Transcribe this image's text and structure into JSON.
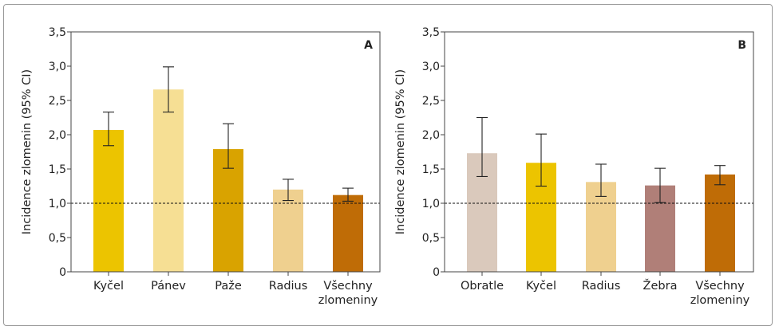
{
  "chart_data": [
    {
      "type": "bar",
      "panel_label": "A",
      "ylabel": "Incidence zlomenin (95% CI)",
      "ylim": [
        0,
        3.5
      ],
      "yticks": [
        "0",
        "0,5",
        "1,0",
        "1,5",
        "2,0",
        "2,5",
        "3,0",
        "3,5"
      ],
      "reference_line": 1.0,
      "categories": [
        [
          "Kyčel"
        ],
        [
          "Pánev"
        ],
        [
          "Paže"
        ],
        [
          "Radius"
        ],
        [
          "Všechny",
          "zlomeniny"
        ]
      ],
      "values": [
        2.07,
        2.66,
        1.79,
        1.2,
        1.12
      ],
      "ci_low": [
        1.84,
        2.33,
        1.51,
        1.04,
        1.03
      ],
      "ci_high": [
        2.33,
        2.99,
        2.16,
        1.35,
        1.22
      ],
      "colors": [
        "#ecc400",
        "#f6df94",
        "#d9a300",
        "#efd08f",
        "#bf6c06"
      ]
    },
    {
      "type": "bar",
      "panel_label": "B",
      "ylabel": "Incidence zlomenin (95% CI)",
      "ylim": [
        0,
        3.5
      ],
      "yticks": [
        "0",
        "0,5",
        "1,0",
        "1,5",
        "2,0",
        "2,5",
        "3,0",
        "3,5"
      ],
      "reference_line": 1.0,
      "categories": [
        [
          "Obratle"
        ],
        [
          "Kyčel"
        ],
        [
          "Radius"
        ],
        [
          "Žebra"
        ],
        [
          "Všechny",
          "zlomeniny"
        ]
      ],
      "values": [
        1.73,
        1.59,
        1.31,
        1.26,
        1.42
      ],
      "ci_low": [
        1.39,
        1.25,
        1.1,
        1.01,
        1.27
      ],
      "ci_high": [
        2.25,
        2.01,
        1.57,
        1.51,
        1.55
      ],
      "colors": [
        "#dac9bc",
        "#ecc400",
        "#efd08f",
        "#b07f78",
        "#bf6c06"
      ]
    }
  ]
}
